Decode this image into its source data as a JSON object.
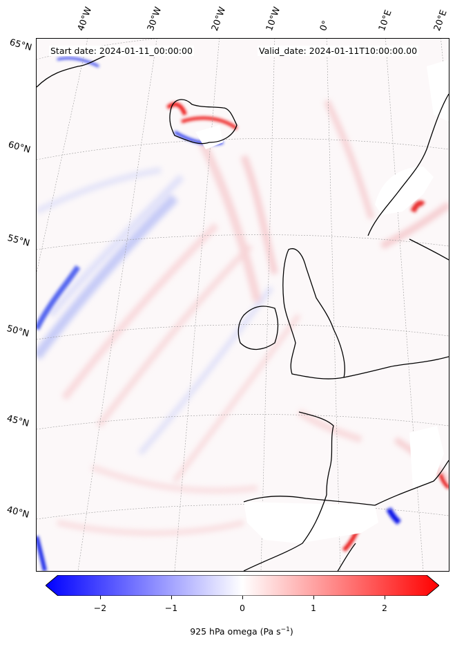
{
  "header": {
    "start_date": "Start date: 2024-01-11_00:00:00",
    "valid_date": "Valid_date: 2024-01-11T10:00:00.00"
  },
  "lon_labels": [
    "40°W",
    "30°W",
    "20°W",
    "10°W",
    "0°",
    "10°E",
    "20°E"
  ],
  "lat_labels": [
    "65°N",
    "60°N",
    "55°N",
    "50°N",
    "45°N",
    "40°N"
  ],
  "colorbar": {
    "ticks": [
      "−2",
      "−1",
      "0",
      "1",
      "2"
    ],
    "label": "925 hPa omega (Pa s",
    "label_sup": "−1",
    "label_close": ")",
    "range": [
      -2.6,
      2.6
    ],
    "colormap": "bwr",
    "low_color": "#0000ff",
    "mid_color": "#ffffff",
    "high_color": "#ff0000"
  },
  "map": {
    "projection": "conic",
    "field": "925 hPa omega",
    "coastline_color": "#000000",
    "gridline_style": "dotted grey"
  }
}
